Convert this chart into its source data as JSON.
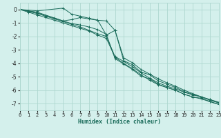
{
  "xlabel": "Humidex (Indice chaleur)",
  "bg_color": "#d4f0ec",
  "grid_color": "#aed8d0",
  "line_color": "#1a6b5a",
  "xlim": [
    0,
    23
  ],
  "ylim": [
    -7.5,
    0.5
  ],
  "yticks": [
    0,
    -1,
    -2,
    -3,
    -4,
    -5,
    -6,
    -7
  ],
  "xticks": [
    0,
    1,
    2,
    3,
    4,
    5,
    6,
    7,
    8,
    9,
    10,
    11,
    12,
    13,
    14,
    15,
    16,
    17,
    18,
    19,
    20,
    21,
    22,
    23
  ],
  "series": [
    {
      "x": [
        0,
        1,
        2,
        3,
        4,
        5,
        6,
        7,
        8,
        9,
        10,
        11,
        12,
        13,
        14,
        15,
        16,
        17,
        18,
        19,
        20,
        21,
        22,
        23
      ],
      "y": [
        0.0,
        -0.15,
        -0.3,
        -0.5,
        -0.7,
        -0.9,
        -1.1,
        -1.3,
        -1.55,
        -1.8,
        -2.0,
        -3.5,
        -3.85,
        -4.25,
        -4.7,
        -5.1,
        -5.45,
        -5.7,
        -5.9,
        -6.15,
        -6.35,
        -6.5,
        -6.75,
        -6.95
      ]
    },
    {
      "x": [
        0,
        2,
        5,
        6,
        7,
        8,
        9,
        10,
        11,
        12,
        13,
        14,
        15,
        16,
        17,
        18,
        19,
        20,
        21,
        22,
        23
      ],
      "y": [
        0.0,
        -0.1,
        0.1,
        -0.35,
        -0.5,
        -0.65,
        -0.8,
        -0.85,
        -1.55,
        -3.6,
        -3.95,
        -4.45,
        -4.8,
        -5.15,
        -5.45,
        -5.7,
        -6.0,
        -6.25,
        -6.5,
        -6.7,
        -6.9
      ]
    },
    {
      "x": [
        0,
        2,
        5,
        6,
        7,
        8,
        9,
        10,
        11,
        12,
        13,
        14,
        15,
        16,
        17,
        18,
        19,
        20,
        21,
        22,
        23
      ],
      "y": [
        0.0,
        -0.2,
        -0.85,
        -1.05,
        -1.15,
        -1.3,
        -1.5,
        -1.85,
        -3.65,
        -4.05,
        -4.45,
        -4.95,
        -5.15,
        -5.55,
        -5.8,
        -6.0,
        -6.3,
        -6.5,
        -6.65,
        -6.85,
        -7.05
      ]
    },
    {
      "x": [
        0,
        1,
        2,
        3,
        4,
        5,
        6,
        7,
        8,
        9,
        10,
        11,
        12,
        13,
        14,
        15,
        16,
        17,
        18,
        19,
        20,
        21,
        22,
        23
      ],
      "y": [
        0.0,
        -0.1,
        -0.25,
        -0.45,
        -0.65,
        -0.85,
        -0.75,
        -0.6,
        -0.7,
        -0.8,
        -1.9,
        -1.55,
        -3.8,
        -4.1,
        -4.65,
        -4.85,
        -5.3,
        -5.55,
        -5.8,
        -6.1,
        -6.3,
        -6.5,
        -6.7,
        -6.9
      ]
    },
    {
      "x": [
        0,
        1,
        2,
        3,
        4,
        5,
        6,
        7,
        8,
        9,
        10,
        11,
        12,
        13,
        14,
        15,
        16,
        17,
        18,
        19,
        20,
        21,
        22,
        23
      ],
      "y": [
        0.0,
        -0.2,
        -0.4,
        -0.6,
        -0.8,
        -1.0,
        -1.2,
        -1.4,
        -1.6,
        -1.9,
        -2.15,
        -3.55,
        -4.0,
        -4.4,
        -4.85,
        -5.25,
        -5.6,
        -5.8,
        -6.0,
        -6.3,
        -6.5,
        -6.6,
        -6.85,
        -7.05
      ]
    }
  ]
}
